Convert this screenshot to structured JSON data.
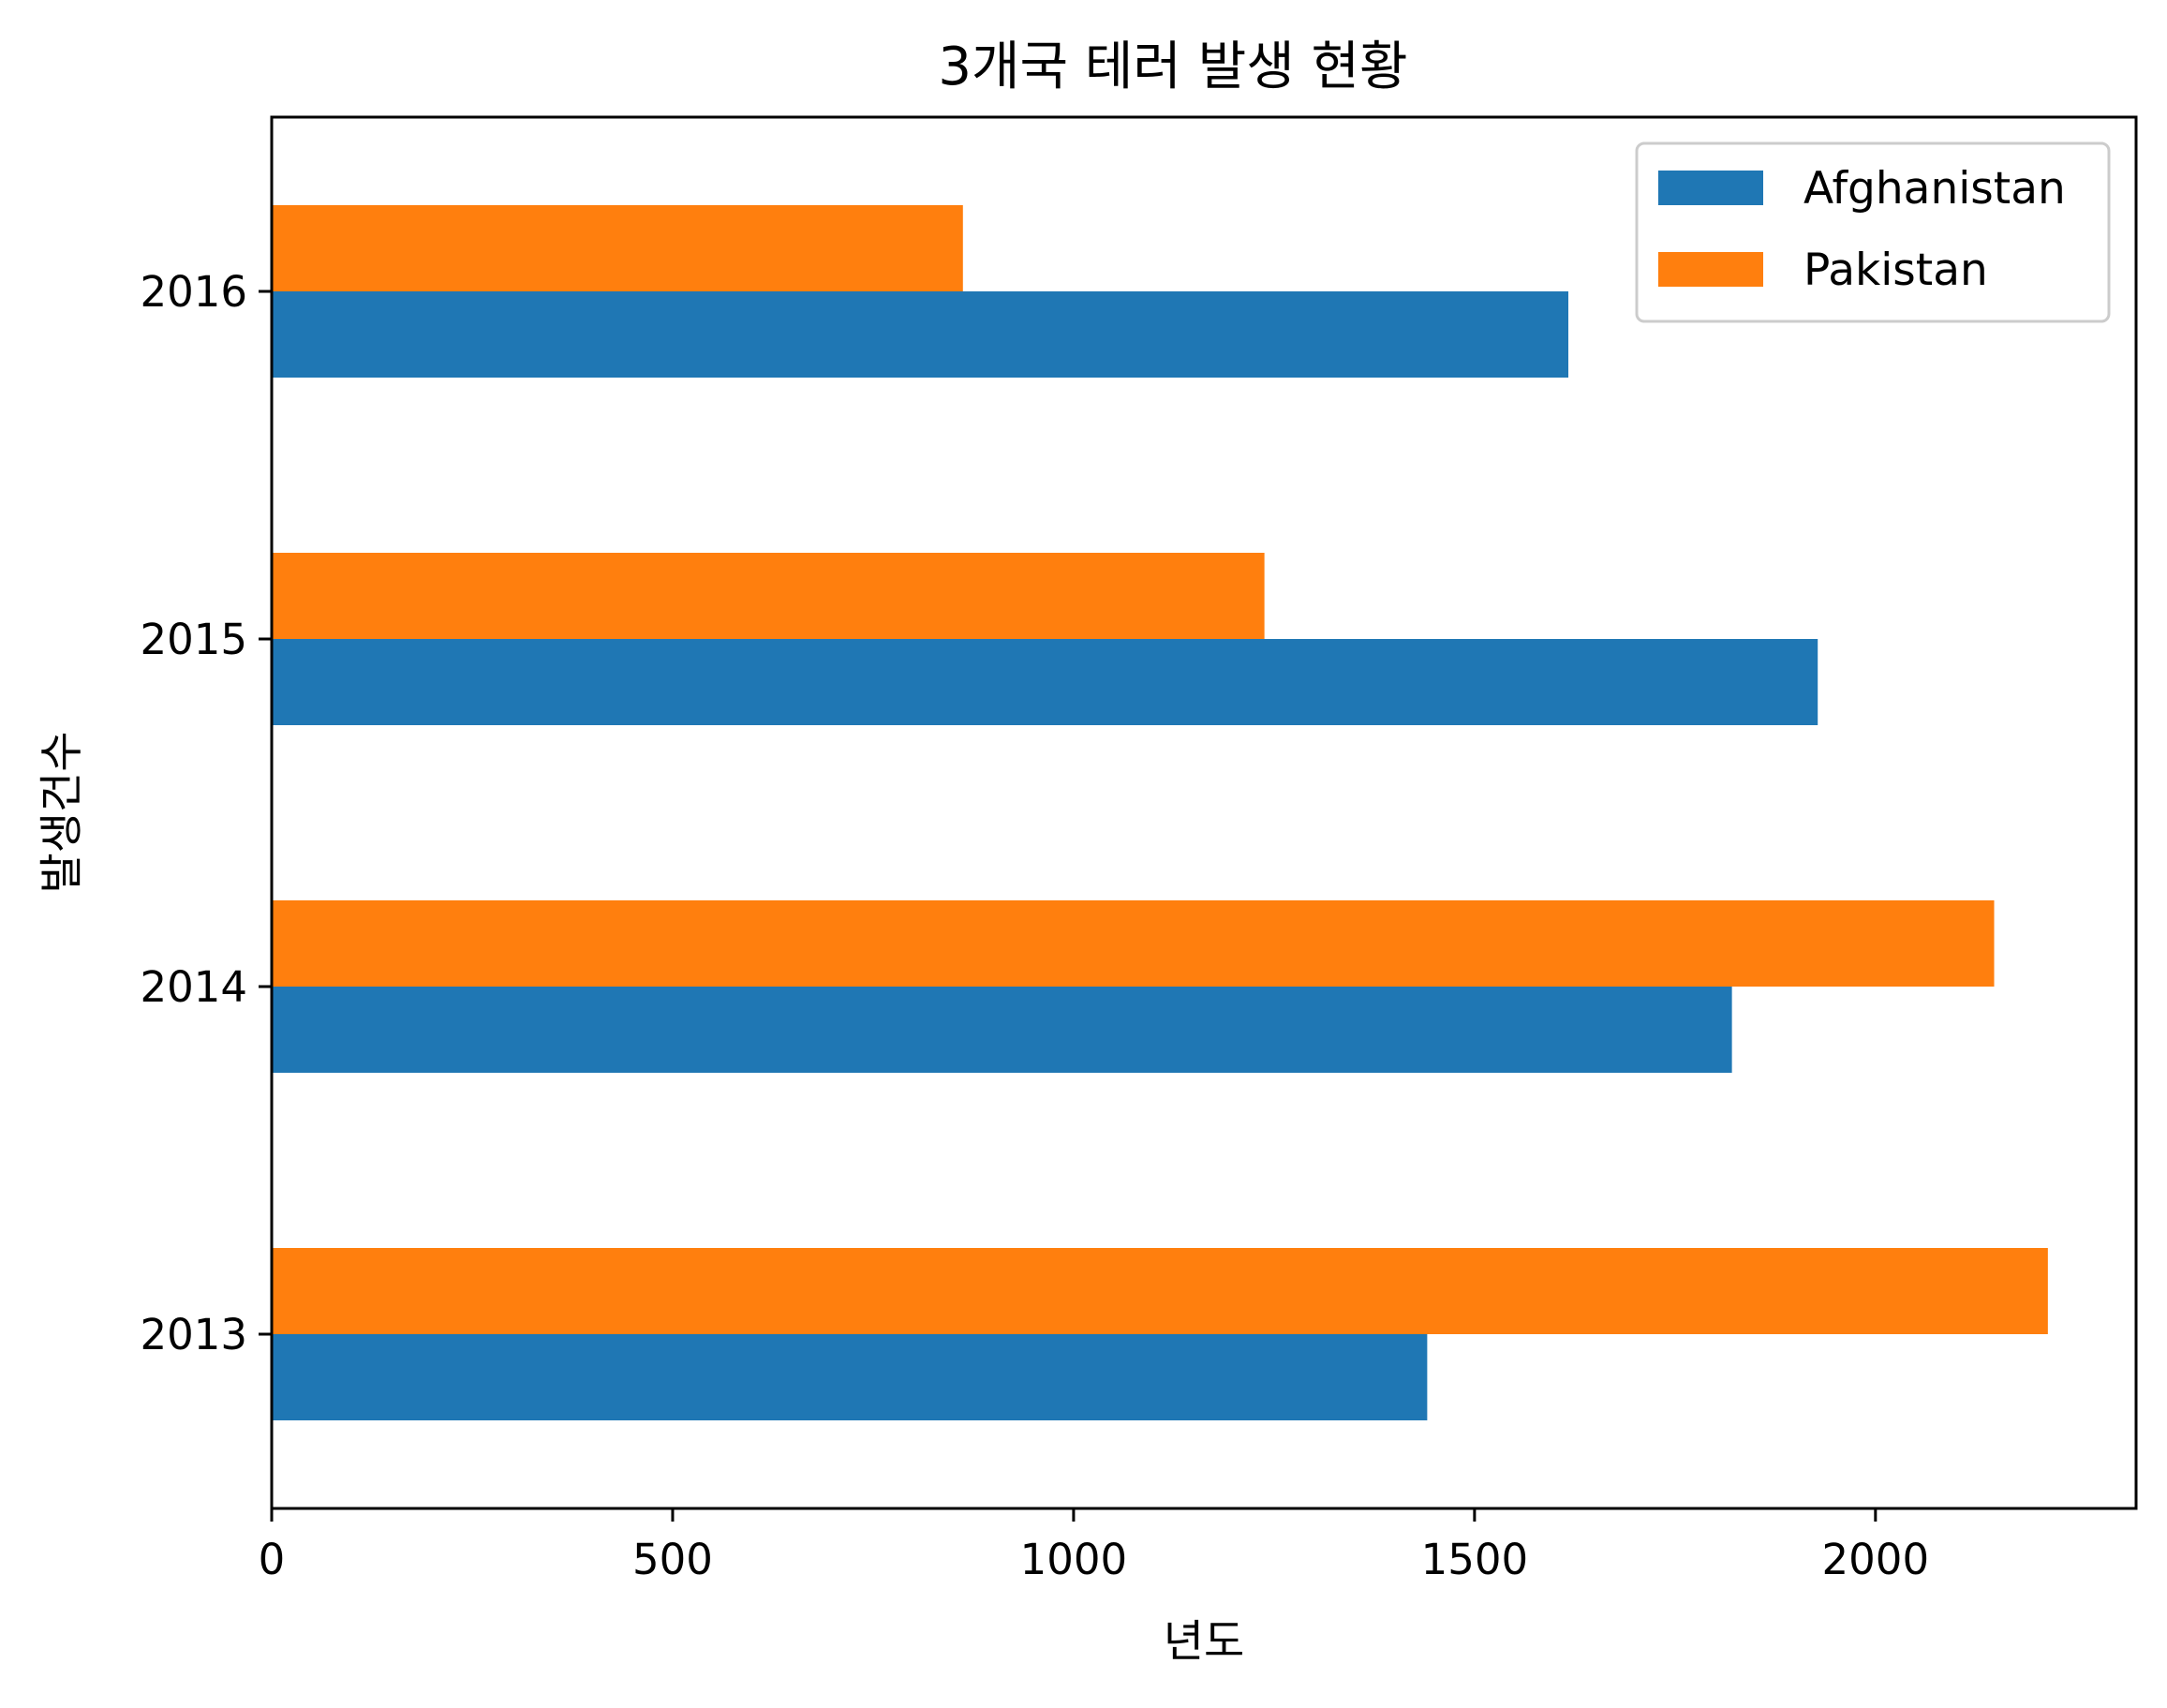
{
  "chart_data": {
    "type": "bar",
    "orientation": "horizontal",
    "title": "3개국 테러 발생 현황",
    "xlabel": "년도",
    "ylabel": "발생건수",
    "categories": [
      "2013",
      "2014",
      "2015",
      "2016"
    ],
    "series": [
      {
        "name": "Afghanistan",
        "color": "#1f77b4",
        "values": [
          1441,
          1821,
          1928,
          1617
        ]
      },
      {
        "name": "Pakistan",
        "color": "#ff7f0e",
        "values": [
          2215,
          2148,
          1238,
          862
        ]
      }
    ],
    "xlim": [
      0,
      2325
    ],
    "xticks": [
      "0",
      "500",
      "1000",
      "1500",
      "2000"
    ],
    "xtick_values": [
      0,
      500,
      1000,
      1500,
      2000
    ],
    "grid": false,
    "legend_position": "top-right"
  }
}
